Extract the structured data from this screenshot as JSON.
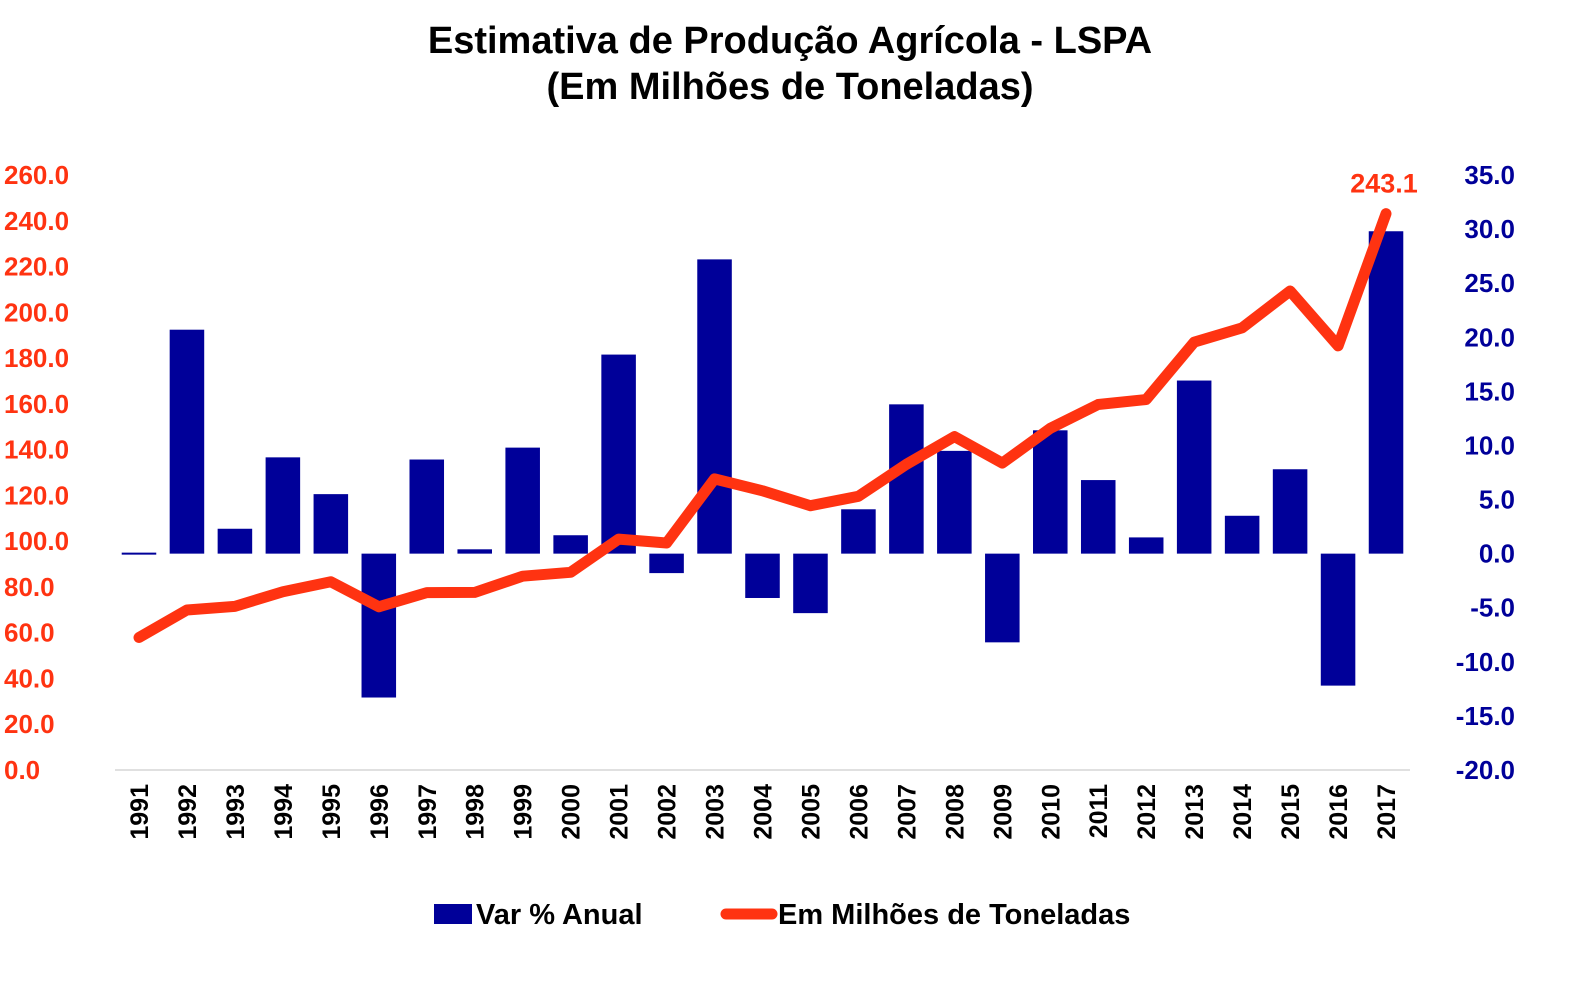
{
  "chart_data": {
    "type": "bar",
    "title": "Estimativa de Produção Agrícola - LSPA",
    "subtitle": "(Em Milhões de Toneladas)",
    "categories": [
      "1991",
      "1992",
      "1993",
      "1994",
      "1995",
      "1996",
      "1997",
      "1998",
      "1999",
      "2000",
      "2001",
      "2002",
      "2003",
      "2004",
      "2005",
      "2006",
      "2007",
      "2008",
      "2009",
      "2010",
      "2011",
      "2012",
      "2013",
      "2014",
      "2015",
      "2016",
      "2017"
    ],
    "series": [
      {
        "name": "Var % Anual",
        "type": "bar",
        "axis": "right",
        "color": "#000099",
        "values": [
          -0.1,
          20.7,
          2.3,
          8.9,
          5.5,
          -13.3,
          8.7,
          0.4,
          9.8,
          1.7,
          18.4,
          -1.8,
          27.2,
          -4.1,
          -5.5,
          4.1,
          13.8,
          9.5,
          -8.2,
          11.4,
          6.8,
          1.5,
          16.0,
          3.5,
          7.8,
          -12.2,
          29.8
        ]
      },
      {
        "name": "Em Milhões de Toneladas",
        "type": "line",
        "axis": "left",
        "color": "#ff3311",
        "values": [
          57.9,
          69.9,
          71.5,
          77.9,
          82.3,
          71.3,
          77.5,
          77.6,
          84.7,
          86.4,
          100.9,
          99.2,
          127.2,
          122.0,
          115.5,
          119.6,
          133.6,
          145.7,
          134.1,
          149.3,
          159.7,
          161.9,
          187.0,
          193.2,
          209.3,
          185.3,
          243.1
        ]
      }
    ],
    "y_left": {
      "min": 0,
      "max": 260,
      "step": 20,
      "color": "#ff3311",
      "tick_format": "0.0"
    },
    "y_right": {
      "min": -20,
      "max": 35,
      "step": 5,
      "color": "#000099",
      "tick_format": "0.0"
    },
    "annotations": [
      {
        "category": "2017",
        "series": "Em Milhões de Toneladas",
        "text": "243.1"
      }
    ],
    "legend": {
      "position": "bottom"
    },
    "grid": false
  }
}
